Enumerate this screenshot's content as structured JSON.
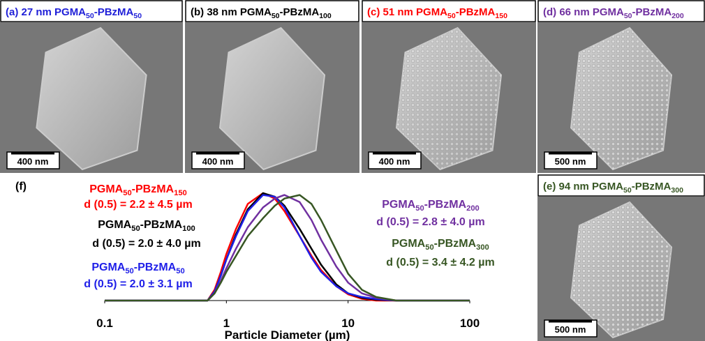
{
  "panels": [
    {
      "parts": [
        "(a) 27 nm PGMA",
        "50",
        "-PBzMA",
        "50"
      ],
      "color": "#1f1fd8",
      "scale_bar": "400 nm"
    },
    {
      "parts": [
        "(b) 38 nm PGMA",
        "50",
        "-PBzMA",
        "100"
      ],
      "color": "#000000",
      "scale_bar": "400 nm"
    },
    {
      "parts": [
        "(c) 51 nm PGMA",
        "50",
        "-PBzMA",
        "150"
      ],
      "color": "#ff0000",
      "scale_bar": "400 nm"
    },
    {
      "parts": [
        "(d) 66 nm PGMA",
        "50",
        "-PBzMA",
        "200"
      ],
      "color": "#7030a0",
      "scale_bar": "500 nm"
    },
    {
      "parts": [
        "(e) 94 nm PGMA",
        "50",
        "-PBzMA",
        "300"
      ],
      "color": "#375623",
      "scale_bar": "500 nm"
    }
  ],
  "chart_data": {
    "type": "line",
    "panel_label": "(f)",
    "xlabel": "Particle Diameter (µm)",
    "xscale": "log",
    "xlim": [
      0.1,
      100
    ],
    "xticks": [
      0.1,
      1,
      10,
      100
    ],
    "x": [
      0.1,
      0.7,
      0.8,
      0.9,
      1,
      1.2,
      1.5,
      2,
      2.5,
      3,
      4,
      5,
      6,
      8,
      10,
      13,
      17,
      25,
      100
    ],
    "series": [
      {
        "name_parts": [
          "PGMA",
          "50",
          "-PBzMA",
          "150"
        ],
        "label": "d (0.5) = 2.2 ± 4.5 µm",
        "color": "#ff0000",
        "values": [
          0,
          0,
          0.6,
          1.6,
          2.6,
          4.0,
          5.4,
          6.0,
          5.7,
          5.0,
          3.6,
          2.5,
          1.7,
          0.8,
          0.35,
          0.1,
          0,
          0,
          0
        ]
      },
      {
        "name_parts": [
          "PGMA",
          "50",
          "-PBzMA",
          "100"
        ],
        "label": "d (0.5) = 2.0 ± 4.0 µm",
        "color": "#000000",
        "values": [
          0,
          0,
          0.5,
          1.4,
          2.3,
          3.7,
          5.1,
          6.0,
          5.8,
          5.3,
          4.0,
          2.9,
          2.0,
          0.9,
          0.4,
          0.15,
          0.05,
          0,
          0
        ]
      },
      {
        "name_parts": [
          "PGMA",
          "50",
          "-PBzMA",
          "50"
        ],
        "label": "d (0.5) = 2.0 ± 3.1 µm",
        "color": "#1f1fe8",
        "values": [
          0,
          0,
          0.5,
          1.4,
          2.3,
          3.6,
          5.0,
          5.9,
          5.8,
          5.2,
          3.6,
          2.4,
          1.6,
          0.8,
          0.4,
          0.2,
          0.08,
          0,
          0
        ]
      },
      {
        "name_parts": [
          "PGMA",
          "50",
          "-PBzMA",
          "200"
        ],
        "label": "d (0.5) = 2.8 ± 4.0 µm",
        "color": "#7030a0",
        "values": [
          0,
          0,
          0.4,
          1.1,
          1.8,
          2.9,
          4.1,
          5.2,
          5.7,
          5.9,
          5.5,
          4.5,
          3.4,
          1.9,
          1.0,
          0.4,
          0.15,
          0,
          0
        ]
      },
      {
        "name_parts": [
          "PGMA",
          "50",
          "-PBzMA",
          "300"
        ],
        "label": "d (0.5) = 3.4 ± 4.2 µm",
        "color": "#375623",
        "values": [
          0,
          0,
          0.4,
          1.0,
          1.6,
          2.5,
          3.6,
          4.6,
          5.3,
          5.7,
          5.9,
          5.4,
          4.5,
          2.8,
          1.5,
          0.6,
          0.2,
          0,
          0
        ]
      }
    ]
  }
}
